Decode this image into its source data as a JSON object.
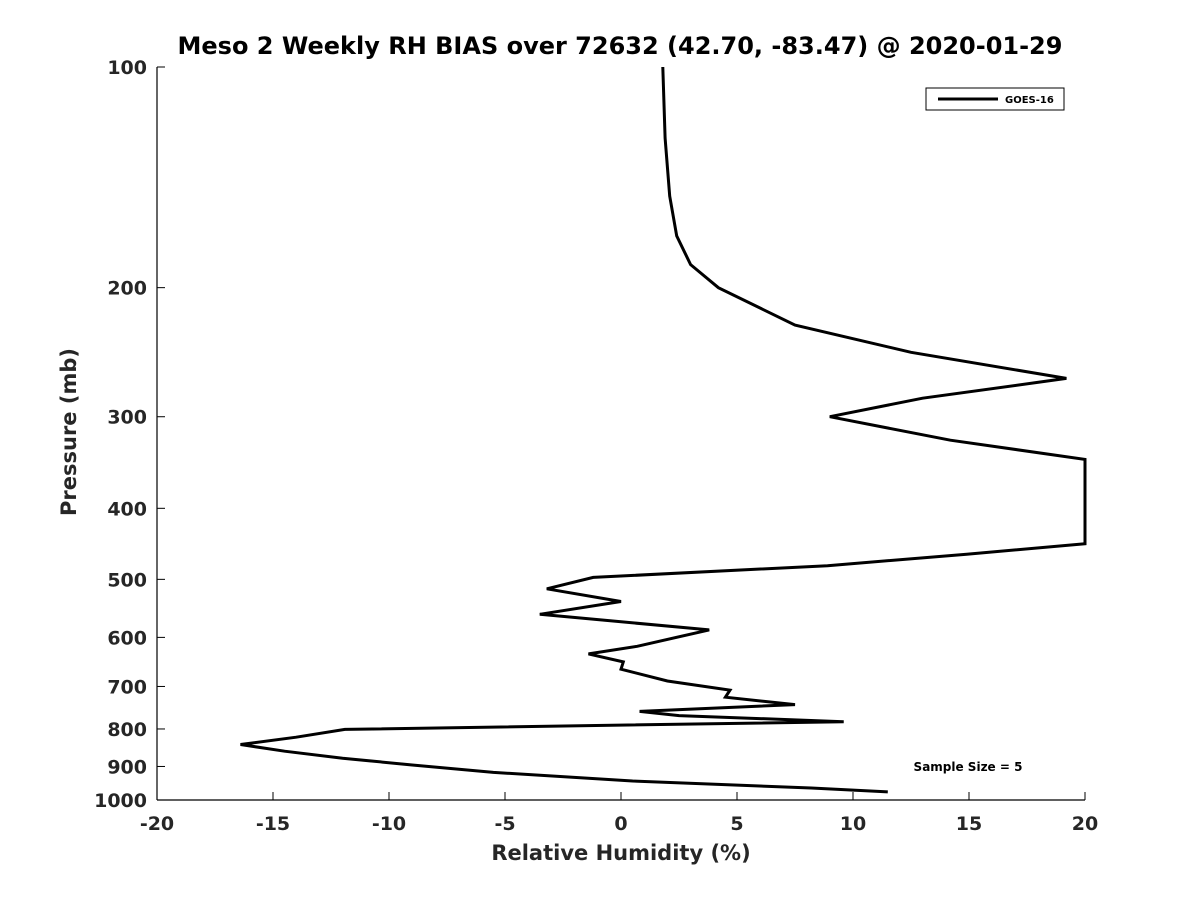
{
  "chart_data": {
    "type": "line",
    "title": "Meso 2 Weekly RH BIAS over 72632 (42.70, -83.47) @ 2020-01-29",
    "xlabel": "Relative Humidity (%)",
    "ylabel": "Pressure (mb)",
    "xlim": [
      -20,
      20
    ],
    "ylim": [
      100,
      1000
    ],
    "y_scale": "log",
    "y_reversed": true,
    "grid": false,
    "legend_position": "top-right",
    "x_ticks": [
      "-20",
      "-15",
      "-10",
      "-5",
      "0",
      "5",
      "10",
      "15",
      "20"
    ],
    "y_ticks": [
      "100",
      "200",
      "300",
      "400",
      "500",
      "600",
      "700",
      "800",
      "900",
      "1000"
    ],
    "series": [
      {
        "name": "GOES-16",
        "color": "#000000",
        "points": [
          [
            11.5,
            975
          ],
          [
            8.2,
            963
          ],
          [
            0.5,
            942
          ],
          [
            -5.5,
            917
          ],
          [
            -9.0,
            896
          ],
          [
            -12.0,
            877
          ],
          [
            -14.5,
            858
          ],
          [
            -16.4,
            840
          ],
          [
            -14.0,
            821
          ],
          [
            -11.9,
            801
          ],
          [
            9.6,
            782
          ],
          [
            2.5,
            767
          ],
          [
            0.8,
            757
          ],
          [
            7.5,
            741
          ],
          [
            4.5,
            724
          ],
          [
            4.7,
            708
          ],
          [
            2.0,
            688
          ],
          [
            0.0,
            663
          ],
          [
            0.1,
            648
          ],
          [
            -1.4,
            632
          ],
          [
            0.7,
            617
          ],
          [
            3.8,
            586
          ],
          [
            -3.5,
            558
          ],
          [
            0.0,
            536
          ],
          [
            -3.2,
            515
          ],
          [
            -1.2,
            497
          ],
          [
            8.9,
            479
          ],
          [
            14.9,
            462
          ],
          [
            20.0,
            447
          ],
          [
            20.0,
            343
          ],
          [
            14.2,
            323
          ],
          [
            9.0,
            300
          ],
          [
            13.0,
            283
          ],
          [
            19.2,
            266
          ],
          [
            12.5,
            245
          ],
          [
            7.5,
            225
          ],
          [
            4.2,
            200
          ],
          [
            3.0,
            186
          ],
          [
            2.4,
            170
          ],
          [
            2.1,
            150
          ],
          [
            1.9,
            125
          ],
          [
            1.8,
            100
          ]
        ]
      }
    ],
    "legend": [
      "GOES-16"
    ],
    "annotation": "Sample Size = 5"
  }
}
